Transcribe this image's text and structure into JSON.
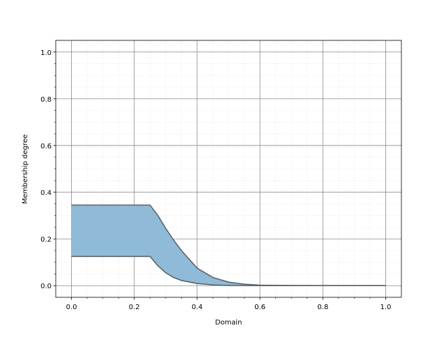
{
  "chart_data": {
    "type": "band",
    "xlabel": "Domain",
    "ylabel": "Membership degree",
    "x": [
      0,
      0.25,
      0.275,
      0.3,
      0.325,
      0.35,
      0.4,
      0.45,
      0.5,
      0.55,
      0.6,
      0.7,
      0.8,
      0.9,
      1.0
    ],
    "series": [
      {
        "color": "#5f6368",
        "values": [
          0.345,
          0.345,
          0.3,
          0.245,
          0.195,
          0.15,
          0.075,
          0.035,
          0.015,
          0.006,
          0.002,
          0.0005,
          0,
          0,
          0
        ]
      },
      {
        "color": "#5f6368",
        "values": [
          0.125,
          0.125,
          0.085,
          0.055,
          0.035,
          0.022,
          0.009,
          0.003,
          0.001,
          0.0003,
          0,
          0,
          0,
          0,
          0
        ]
      }
    ],
    "fill_color": "#8fbbd9",
    "xlim": [
      -0.05,
      1.05
    ],
    "ylim": [
      -0.05,
      1.05
    ],
    "xticks": [
      {
        "value": 0,
        "label": "0.0"
      },
      0.2,
      0.4,
      0.6,
      0.8,
      {
        "value": 1,
        "label": "1.0"
      }
    ],
    "yticks": [
      {
        "value": 0,
        "label": "0.0"
      },
      0.2,
      0.4,
      0.6,
      0.8,
      {
        "value": 1,
        "label": "1.0"
      }
    ],
    "xminorticks": [
      0.05,
      0.1,
      0.15,
      0.25,
      0.3,
      0.35,
      0.45,
      0.5,
      0.55,
      0.65,
      0.7,
      0.75,
      0.85,
      0.9,
      0.95
    ],
    "yminorticks": [
      0.05,
      0.1,
      0.15,
      0.25,
      0.3,
      0.35,
      0.45,
      0.5,
      0.55,
      0.65,
      0.7,
      0.75,
      0.85,
      0.9,
      0.95
    ],
    "grid": true
  }
}
